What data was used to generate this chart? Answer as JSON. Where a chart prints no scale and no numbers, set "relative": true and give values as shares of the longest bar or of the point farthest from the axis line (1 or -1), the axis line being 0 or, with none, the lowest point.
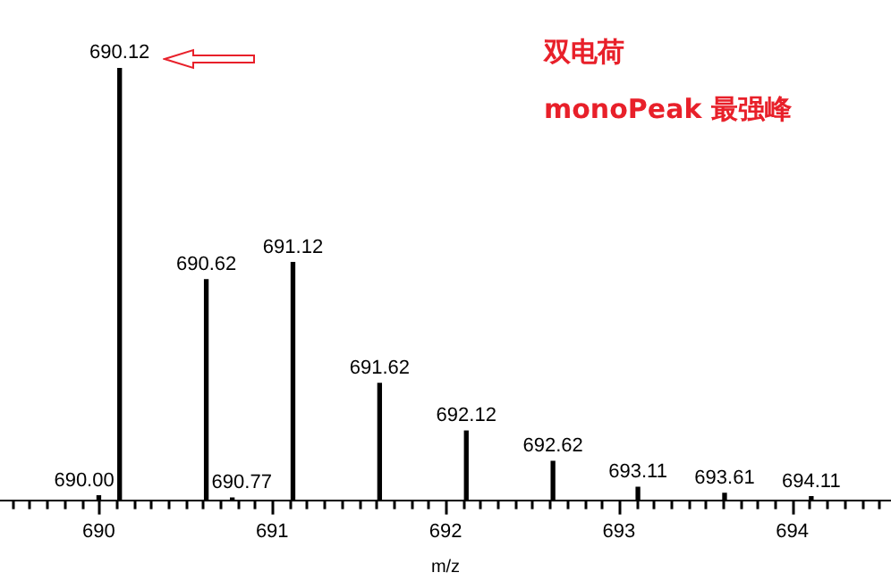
{
  "chart_data": {
    "type": "bar",
    "relative": true,
    "xlabel": "m/z",
    "annotations": [
      "双电荷",
      "monoPeak 最强峰",
      {
        "text": "690.00",
        "x": 690.0,
        "y": 0.01
      },
      {
        "text": "690.12",
        "x": 690.12,
        "y": 1
      },
      {
        "text": "690.62",
        "x": 690.62,
        "y": 0.51
      },
      {
        "text": "690.77",
        "x": 690.77,
        "y": 0.005
      },
      {
        "text": "691.12",
        "x": 691.12,
        "y": 0.55
      },
      {
        "text": "691.62",
        "x": 691.62,
        "y": 0.27
      },
      {
        "text": "692.12",
        "x": 692.12,
        "y": 0.16
      },
      {
        "text": "692.62",
        "x": 692.62,
        "y": 0.09
      },
      {
        "text": "693.11",
        "x": 693.11,
        "y": 0.03
      },
      {
        "text": "693.61",
        "x": 693.61,
        "y": 0.016
      },
      {
        "text": "694.11",
        "x": 694.11,
        "y": 0.008
      }
    ],
    "x": [
      690.0,
      690.12,
      690.62,
      690.77,
      691.12,
      691.62,
      692.12,
      692.62,
      693.11,
      693.61,
      694.11
    ],
    "values": [
      0.01,
      1,
      0.51,
      0.005,
      0.55,
      0.27,
      0.16,
      0.09,
      0.03,
      0.016,
      0.008
    ],
    "color": "#000000",
    "xlim": [
      689.43,
      694.57
    ],
    "xticks": [
      {
        "value": 689.5,
        "label": null
      },
      {
        "value": 689.6,
        "label": null
      },
      {
        "value": 689.7,
        "label": null
      },
      {
        "value": 689.8,
        "label": null
      },
      {
        "value": 689.9,
        "label": null
      },
      690,
      {
        "value": 690.1,
        "label": null
      },
      {
        "value": 690.2,
        "label": null
      },
      {
        "value": 690.3,
        "label": null
      },
      {
        "value": 690.4,
        "label": null
      },
      {
        "value": 690.5,
        "label": null
      },
      {
        "value": 690.6,
        "label": null
      },
      {
        "value": 690.7,
        "label": null
      },
      {
        "value": 690.8,
        "label": null
      },
      {
        "value": 690.9,
        "label": null
      },
      691,
      {
        "value": 691.1,
        "label": null
      },
      {
        "value": 691.2,
        "label": null
      },
      {
        "value": 691.3,
        "label": null
      },
      {
        "value": 691.4,
        "label": null
      },
      {
        "value": 691.5,
        "label": null
      },
      {
        "value": 691.6,
        "label": null
      },
      {
        "value": 691.7,
        "label": null
      },
      {
        "value": 691.8,
        "label": null
      },
      {
        "value": 691.9,
        "label": null
      },
      692,
      {
        "value": 692.1,
        "label": null
      },
      {
        "value": 692.2,
        "label": null
      },
      {
        "value": 692.3,
        "label": null
      },
      {
        "value": 692.4,
        "label": null
      },
      {
        "value": 692.5,
        "label": null
      },
      {
        "value": 692.6,
        "label": null
      },
      {
        "value": 692.7,
        "label": null
      },
      {
        "value": 692.8,
        "label": null
      },
      {
        "value": 692.9,
        "label": null
      },
      693,
      {
        "value": 693.1,
        "label": null
      },
      {
        "value": 693.2,
        "label": null
      },
      {
        "value": 693.3,
        "label": null
      },
      {
        "value": 693.4,
        "label": null
      },
      {
        "value": 693.5,
        "label": null
      },
      {
        "value": 693.6,
        "label": null
      },
      {
        "value": 693.7,
        "label": null
      },
      {
        "value": 693.8,
        "label": null
      },
      {
        "value": 693.9,
        "label": null
      },
      694,
      {
        "value": 694.1,
        "label": null
      },
      {
        "value": 694.2,
        "label": null
      },
      {
        "value": 694.3,
        "label": null
      },
      {
        "value": 694.4,
        "label": null
      },
      {
        "value": 694.5,
        "label": null
      }
    ],
    "grid": false,
    "legend": false
  }
}
